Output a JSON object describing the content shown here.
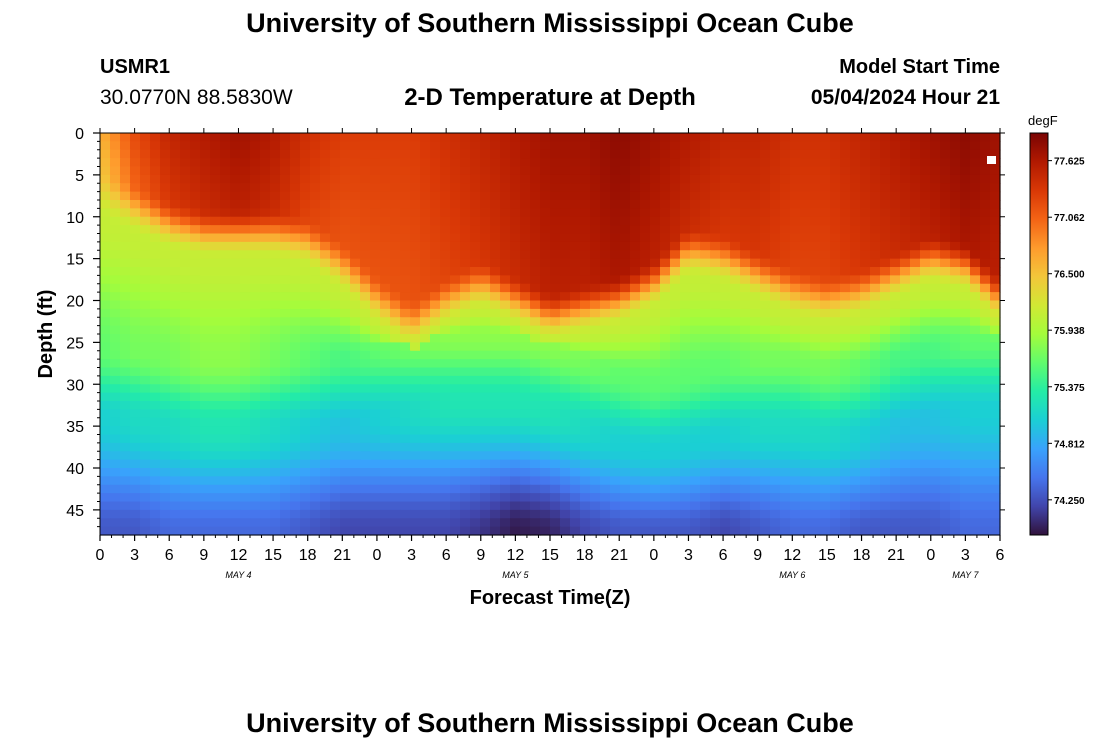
{
  "header": {
    "title": "University of Southern Mississippi Ocean Cube",
    "station_id": "USMR1",
    "coords": "30.0770N  88.5830W",
    "subtitle": "2-D Temperature at Depth",
    "model_start_label": "Model Start Time",
    "model_start_value": "05/04/2024 Hour 21",
    "footer_title": "University of Southern Mississippi Ocean Cube"
  },
  "chart_data": {
    "type": "heatmap",
    "title": "2-D Temperature at Depth",
    "xlabel": "Forecast Time(Z)",
    "ylabel": "Depth (ft)",
    "x_hours": [
      0,
      78
    ],
    "x_tick_labels": [
      "0",
      "3",
      "6",
      "9",
      "12",
      "15",
      "18",
      "21",
      "0",
      "3",
      "6",
      "9",
      "12",
      "15",
      "18",
      "21",
      "0",
      "3",
      "6",
      "9",
      "12",
      "15",
      "18",
      "21",
      "0",
      "3",
      "6"
    ],
    "day_labels": [
      {
        "label": "MAY 4",
        "hour": 12
      },
      {
        "label": "MAY 5",
        "hour": 36
      },
      {
        "label": "MAY 6",
        "hour": 60
      },
      {
        "label": "MAY 7",
        "hour": 75
      }
    ],
    "y_ticks": [
      0,
      5,
      10,
      15,
      20,
      25,
      30,
      35,
      40,
      45
    ],
    "ylim": [
      0,
      48
    ],
    "colorbar": {
      "unit": "degF",
      "ticks": [
        "77.625",
        "77.062",
        "76.500",
        "75.938",
        "75.375",
        "74.812",
        "74.250"
      ],
      "range": [
        73.9,
        77.9
      ]
    },
    "colormap": [
      "#30123b",
      "#4145ab",
      "#4675ed",
      "#39a2fc",
      "#1bcfd4",
      "#24eca6",
      "#61fc6c",
      "#a4fc3b",
      "#d1e834",
      "#f3c63a",
      "#fe9b2d",
      "#f36315",
      "#d93806",
      "#b11901",
      "#7a0403"
    ],
    "profile_hours": [
      0,
      3,
      6,
      9,
      12,
      15,
      18,
      21,
      24,
      27,
      30,
      33,
      36,
      39,
      42,
      45,
      48,
      51,
      54,
      57,
      60,
      63,
      66,
      69,
      72,
      75,
      78
    ],
    "mixed_layer_bottom_ft": [
      7,
      9,
      11,
      12,
      12,
      12,
      13,
      16,
      20,
      23,
      20,
      18,
      20,
      22,
      21,
      20,
      18,
      14,
      15,
      17,
      19,
      20,
      19,
      17,
      15,
      16,
      20
    ],
    "cool_layer_top_ft": [
      30,
      30,
      31,
      31,
      31,
      31,
      31,
      31,
      30,
      29,
      28,
      28,
      28,
      29,
      31,
      33,
      34,
      33,
      32,
      31,
      31,
      32,
      32,
      31,
      30,
      29,
      29
    ],
    "surface_temp_degF": [
      76.6,
      77.2,
      77.5,
      77.6,
      77.7,
      77.6,
      77.4,
      77.3,
      77.3,
      77.3,
      77.4,
      77.5,
      77.6,
      77.7,
      77.7,
      77.8,
      77.7,
      77.6,
      77.5,
      77.5,
      77.4,
      77.4,
      77.5,
      77.6,
      77.7,
      77.8,
      77.7
    ],
    "mid_temp_degF": [
      75.6,
      75.7,
      75.7,
      75.8,
      75.8,
      75.7,
      75.6,
      75.5,
      75.6,
      75.7,
      75.8,
      75.8,
      75.8,
      75.8,
      75.7,
      75.6,
      75.6,
      75.6,
      75.6,
      75.7,
      75.7,
      75.7,
      75.6,
      75.5,
      75.5,
      75.6,
      75.6
    ],
    "bottom_temp_degF": [
      74.3,
      74.3,
      74.4,
      74.4,
      74.4,
      74.4,
      74.3,
      74.2,
      74.2,
      74.2,
      74.2,
      74.1,
      73.95,
      74.0,
      74.2,
      74.3,
      74.3,
      74.3,
      74.2,
      74.3,
      74.4,
      74.4,
      74.3,
      74.3,
      74.3,
      74.4,
      74.4
    ]
  }
}
